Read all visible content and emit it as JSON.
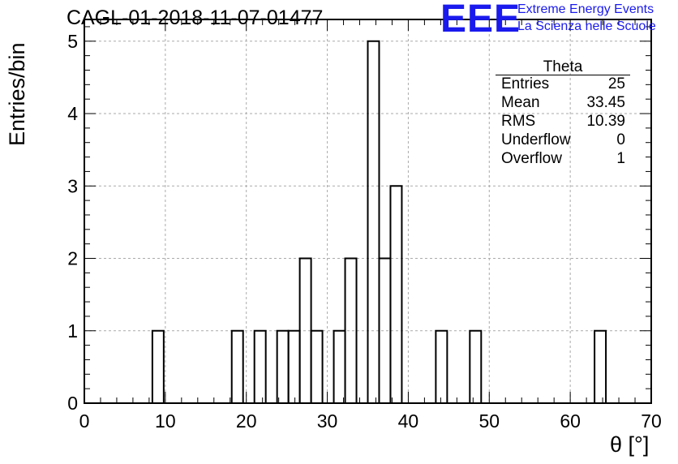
{
  "title": "CAGL-01-2018-11-07-01477",
  "logo": {
    "mark": "EEE",
    "line1": "Extreme Energy Events",
    "line2": "La Scienza nelle Scuole"
  },
  "stats": {
    "name": "Theta",
    "rows": [
      {
        "key": "Entries",
        "value": "25"
      },
      {
        "key": "Mean",
        "value": "33.45"
      },
      {
        "key": "RMS",
        "value": "10.39"
      },
      {
        "key": "Underflow",
        "value": "0"
      },
      {
        "key": "Overflow",
        "value": "1"
      }
    ]
  },
  "chart_data": {
    "type": "bar",
    "title": "CAGL-01-2018-11-07-01477",
    "xlabel": "θ [°]",
    "ylabel": "Entries/bin",
    "xlim": [
      0,
      70
    ],
    "ylim": [
      0,
      5.3
    ],
    "bin_width": 1.4,
    "x_ticks": [
      "0",
      "10",
      "20",
      "30",
      "40",
      "50",
      "60",
      "70"
    ],
    "y_ticks": [
      "0",
      "1",
      "2",
      "3",
      "4",
      "5"
    ],
    "grid": true,
    "legend": "top-right",
    "bins": [
      {
        "x0": 8.4,
        "count": 1
      },
      {
        "x0": 18.2,
        "count": 1
      },
      {
        "x0": 21.0,
        "count": 1
      },
      {
        "x0": 23.8,
        "count": 1
      },
      {
        "x0": 25.2,
        "count": 1
      },
      {
        "x0": 26.6,
        "count": 2
      },
      {
        "x0": 28.0,
        "count": 1
      },
      {
        "x0": 30.8,
        "count": 1
      },
      {
        "x0": 32.2,
        "count": 2
      },
      {
        "x0": 35.0,
        "count": 5
      },
      {
        "x0": 36.4,
        "count": 2
      },
      {
        "x0": 37.8,
        "count": 3
      },
      {
        "x0": 43.4,
        "count": 1
      },
      {
        "x0": 47.6,
        "count": 1
      },
      {
        "x0": 63.0,
        "count": 1
      }
    ]
  }
}
